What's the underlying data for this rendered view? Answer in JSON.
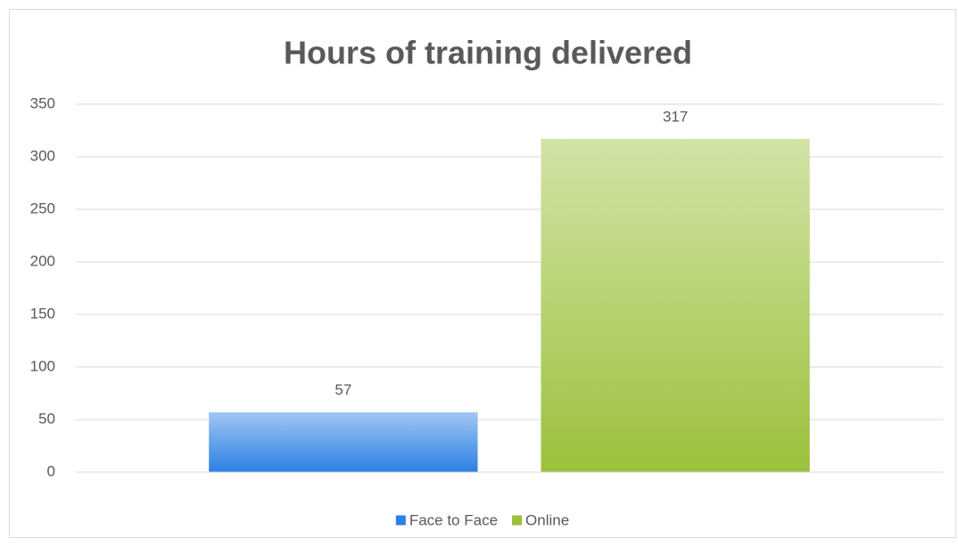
{
  "chart_data": {
    "type": "bar",
    "title": "Hours of training delivered",
    "categories": [
      null
    ],
    "series": [
      {
        "name": "Face to Face",
        "color": "#2b80e4",
        "values": [
          57
        ]
      },
      {
        "name": "Online",
        "color": "#9bc13c",
        "values": [
          317
        ]
      }
    ],
    "ylim": [
      0,
      350
    ],
    "yticks": [
      0,
      50,
      100,
      150,
      200,
      250,
      300,
      350
    ],
    "grid": true,
    "legend": "bottom"
  }
}
